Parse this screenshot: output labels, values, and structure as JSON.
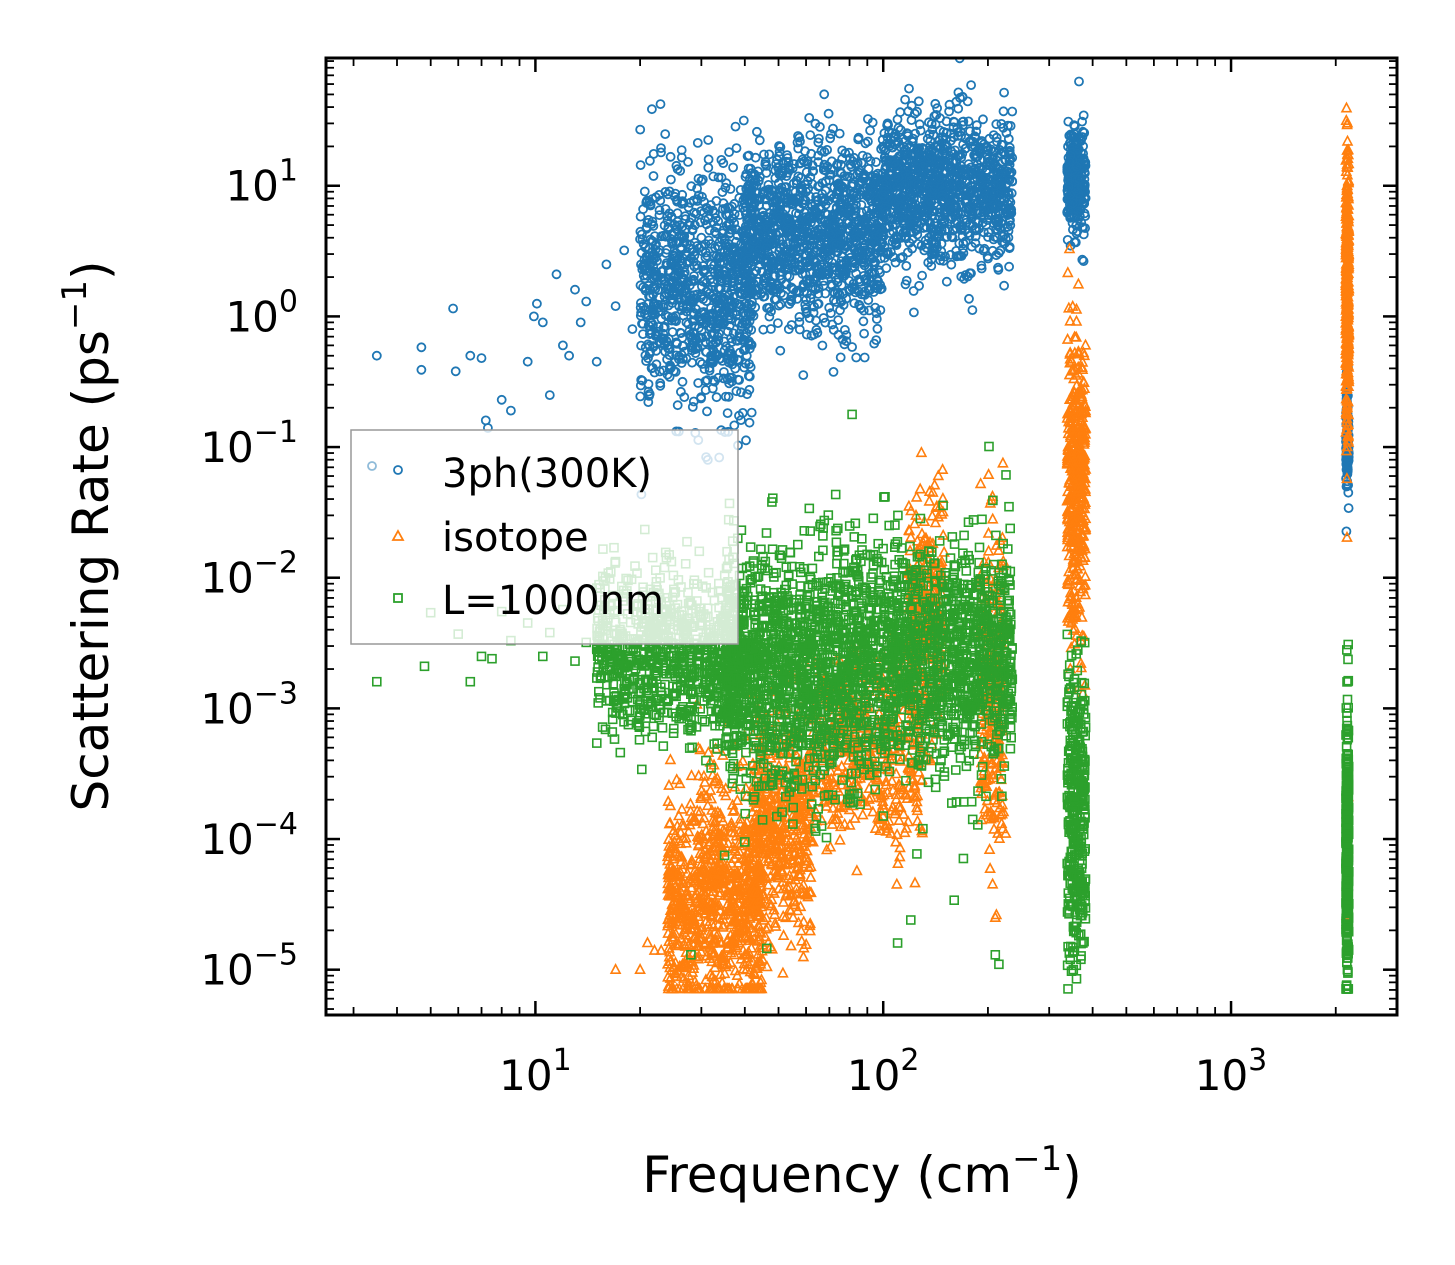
{
  "chart_data": {
    "type": "scatter",
    "title": "",
    "xlabel": "Frequency (cm",
    "xlabel_sup": "−1",
    "xlabel_close": ")",
    "ylabel": "Scattering Rate (ps",
    "ylabel_sup": "−1",
    "ylabel_close": ")",
    "xscale": "log",
    "yscale": "log",
    "xlim": [
      2.5,
      3000
    ],
    "ylim": [
      4.5e-06,
      95
    ],
    "x_ticks": [
      {
        "value": 10,
        "base": "10",
        "exp": "1"
      },
      {
        "value": 100,
        "base": "10",
        "exp": "2"
      },
      {
        "value": 1000,
        "base": "10",
        "exp": "3"
      }
    ],
    "y_ticks": [
      {
        "value": 1e-05,
        "base": "10",
        "exp": "−5"
      },
      {
        "value": 0.0001,
        "base": "10",
        "exp": "−4"
      },
      {
        "value": 0.001,
        "base": "10",
        "exp": "−3"
      },
      {
        "value": 0.01,
        "base": "10",
        "exp": "−2"
      },
      {
        "value": 0.1,
        "base": "10",
        "exp": "−1"
      },
      {
        "value": 1,
        "base": "10",
        "exp": "0"
      },
      {
        "value": 10,
        "base": "10",
        "exp": "1"
      }
    ],
    "legend_position": "center-left",
    "series": [
      {
        "name": "3ph(300K)",
        "marker": "circle",
        "color": "#1f77b4",
        "points": [
          [
            3.5,
            0.5
          ],
          [
            4.7,
            0.58
          ],
          [
            4.7,
            0.39
          ],
          [
            5.8,
            1.15
          ],
          [
            5.9,
            0.38
          ],
          [
            6.5,
            0.5
          ],
          [
            7.0,
            0.48
          ],
          [
            7.2,
            0.16
          ],
          [
            7.3,
            0.14
          ],
          [
            8.0,
            0.23
          ],
          [
            8.5,
            0.19
          ],
          [
            9.5,
            0.45
          ],
          [
            9.9,
            1.0
          ],
          [
            10.1,
            1.25
          ],
          [
            10.5,
            0.9
          ],
          [
            11.0,
            0.25
          ],
          [
            11.5,
            2.1
          ],
          [
            12.0,
            0.6
          ],
          [
            12.5,
            0.5
          ],
          [
            13.0,
            1.6
          ],
          [
            13.5,
            0.9
          ],
          [
            14.0,
            1.3
          ],
          [
            15.0,
            0.45
          ],
          [
            16.0,
            2.5
          ],
          [
            17.0,
            1.2
          ],
          [
            18.0,
            3.2
          ],
          [
            19.0,
            0.8
          ],
          [
            20.0,
            3.9
          ],
          [
            21.0,
            5.2
          ],
          [
            22.0,
            2.2
          ],
          [
            23.0,
            4.1
          ],
          [
            24.0,
            0.6
          ],
          [
            25.0,
            1.5
          ],
          [
            26.0,
            5.0
          ],
          [
            27.0,
            3.0
          ],
          [
            28.0,
            0.7
          ],
          [
            29.0,
            6.1
          ],
          [
            30.0,
            4.0
          ],
          [
            31.0,
            1.8
          ],
          [
            32.0,
            2.5
          ],
          [
            33.0,
            0.8
          ],
          [
            35.0,
            0.55
          ],
          [
            36.0,
            3.4
          ],
          [
            38.0,
            2.4
          ],
          [
            40.0,
            0.9
          ],
          [
            42.0,
            6.5
          ],
          [
            44.0,
            4.2
          ],
          [
            46.0,
            1.8
          ],
          [
            48.0,
            2.9
          ],
          [
            50.0,
            6.4
          ],
          [
            55.0,
            8.0
          ],
          [
            60.0,
            9.0
          ],
          [
            65.0,
            17.0
          ],
          [
            70.0,
            11.0
          ],
          [
            75.0,
            7.2
          ],
          [
            80.0,
            4.5
          ],
          [
            85.0,
            10.5
          ],
          [
            90.0,
            16.5
          ],
          [
            95.0,
            12.0
          ],
          [
            100.0,
            8.5
          ],
          [
            110.0,
            9.8
          ],
          [
            120.0,
            5.0
          ],
          [
            130.0,
            14.0
          ],
          [
            140.0,
            3.2
          ],
          [
            150.0,
            18.0
          ],
          [
            160.0,
            12.0
          ],
          [
            170.0,
            31.0
          ],
          [
            180.0,
            8.0
          ],
          [
            185.0,
            26.0
          ],
          [
            200.0,
            16.0
          ],
          [
            210.0,
            10.0
          ],
          [
            220.0,
            13.0
          ],
          [
            230.0,
            18.0
          ],
          [
            340.0,
            11.0
          ],
          [
            345.0,
            8.5
          ],
          [
            350.0,
            5.2
          ],
          [
            355.0,
            3.7
          ],
          [
            360.0,
            14.0
          ],
          [
            365.0,
            19.0
          ],
          [
            370.0,
            22.0
          ],
          [
            375.0,
            7.5
          ],
          [
            380.0,
            12.5
          ],
          [
            2150.0,
            0.19
          ],
          [
            2160.0,
            0.1
          ],
          [
            2165.0,
            0.065
          ],
          [
            2170.0,
            0.14
          ]
        ],
        "dense_bands": [
          {
            "x_min": 20,
            "x_max": 42,
            "y_center": 1.6,
            "spread": 0.45,
            "count": 900
          },
          {
            "x_min": 40,
            "x_max": 100,
            "y_center": 4.0,
            "spread": 0.35,
            "count": 1200
          },
          {
            "x_min": 100,
            "x_max": 235,
            "y_center": 9.5,
            "spread": 0.28,
            "count": 1100
          },
          {
            "x_min": 338,
            "x_max": 382,
            "y_center": 11.0,
            "spread": 0.2,
            "count": 260
          },
          {
            "x_min": 2140,
            "x_max": 2180,
            "y_center": 0.11,
            "spread": 0.22,
            "count": 120
          }
        ]
      },
      {
        "name": "isotope",
        "marker": "triangle",
        "color": "#ff7f0e",
        "points": [
          [
            17.0,
            1e-05
          ],
          [
            20.0,
            1e-05
          ],
          [
            21.0,
            1.6e-05
          ],
          [
            22.0,
            1.4e-05
          ],
          [
            23.0,
            1.4e-05
          ],
          [
            24.0,
            1.1e-05
          ],
          [
            26.0,
            3.2e-05
          ],
          [
            27.0,
            2.2e-05
          ],
          [
            55.0,
            3.8e-05
          ],
          [
            60.0,
            0.00012
          ],
          [
            75.0,
            0.00068
          ],
          [
            85.0,
            0.00058
          ],
          [
            90.0,
            0.00018
          ],
          [
            95.0,
            0.00012
          ],
          [
            140.0,
            0.0012
          ],
          [
            150.0,
            0.0014
          ],
          [
            200.0,
            0.00016
          ],
          [
            210.0,
            2.5e-05
          ],
          [
            215.0,
            0.0024
          ],
          [
            225.0,
            0.00011
          ],
          [
            340.0,
            0.0065
          ],
          [
            345.0,
            0.002
          ],
          [
            350.0,
            0.0048
          ],
          [
            355.0,
            0.0031
          ],
          [
            360.0,
            0.0036
          ],
          [
            370.0,
            0.0022
          ],
          [
            375.0,
            0.0013
          ],
          [
            380.0,
            0.0015
          ],
          [
            2150.0,
            2.6e-05
          ],
          [
            2160.0,
            4.6e-05
          ],
          [
            2170.0,
            0.00021
          ]
        ],
        "dense_bands": [
          {
            "x_min": 24,
            "x_max": 45,
            "y_center": 3.5e-05,
            "spread": 0.45,
            "count": 900
          },
          {
            "x_min": 42,
            "x_max": 62,
            "y_center": 0.00013,
            "spread": 0.45,
            "count": 500
          },
          {
            "x_min": 62,
            "x_max": 130,
            "y_center": 0.00048,
            "spread": 0.35,
            "count": 500
          },
          {
            "x_min": 118,
            "x_max": 150,
            "y_center": 0.005,
            "spread": 0.45,
            "count": 300
          },
          {
            "x_min": 190,
            "x_max": 222,
            "y_center": 0.0015,
            "spread": 0.65,
            "count": 260
          },
          {
            "x_min": 338,
            "x_max": 382,
            "y_center": 0.05,
            "spread": 0.55,
            "count": 420
          },
          {
            "x_min": 2140,
            "x_max": 2180,
            "y_center": 1.5,
            "spread": 0.55,
            "count": 380
          }
        ]
      },
      {
        "name": "L=1000nm",
        "marker": "square",
        "color": "#2ca02c",
        "points": [
          [
            3.5,
            0.0016
          ],
          [
            4.8,
            0.0021
          ],
          [
            5.0,
            0.0054
          ],
          [
            6.0,
            0.0037
          ],
          [
            6.5,
            0.0016
          ],
          [
            7.0,
            0.0025
          ],
          [
            7.5,
            0.0024
          ],
          [
            8.0,
            0.0055
          ],
          [
            8.5,
            0.0033
          ],
          [
            9.5,
            0.0045
          ],
          [
            10.5,
            0.0025
          ],
          [
            11.0,
            0.0038
          ],
          [
            12.0,
            0.0057
          ],
          [
            13.0,
            0.0023
          ],
          [
            14.0,
            0.0032
          ],
          [
            15.0,
            0.0029
          ],
          [
            18.0,
            0.0014
          ],
          [
            20.0,
            0.0011
          ],
          [
            22.0,
            0.0009
          ],
          [
            25.0,
            0.0007
          ],
          [
            28.0,
            1.3e-05
          ],
          [
            32.0,
            0.00035
          ],
          [
            35.0,
            7.5e-05
          ],
          [
            40.0,
            9.5e-05
          ],
          [
            45.0,
            0.00014
          ],
          [
            55.0,
            0.00013
          ],
          [
            65.0,
            0.00017
          ],
          [
            80.0,
            0.00022
          ],
          [
            100.0,
            0.00015
          ],
          [
            110.0,
            1.6e-05
          ],
          [
            120.0,
            2.4e-05
          ],
          [
            125.0,
            7.7e-05
          ],
          [
            130.0,
            0.00012
          ],
          [
            150.0,
            0.0085
          ],
          [
            160.0,
            3.4e-05
          ],
          [
            170.0,
            7.1e-05
          ],
          [
            175.0,
            0.0087
          ],
          [
            185.0,
            0.0075
          ],
          [
            190.0,
            0.0098
          ],
          [
            200.0,
            0.0078
          ],
          [
            210.0,
            1.3e-05
          ],
          [
            215.0,
            1.1e-05
          ],
          [
            222.0,
            0.0055
          ],
          [
            340.0,
            1.5e-05
          ],
          [
            345.0,
            1.2e-05
          ],
          [
            350.0,
            3.1e-05
          ],
          [
            355.0,
            5.3e-05
          ],
          [
            360.0,
            2.3e-05
          ],
          [
            370.0,
            1.2e-05
          ],
          [
            375.0,
            1.6e-05
          ],
          [
            2150.0,
            0.0007
          ],
          [
            2160.0,
            1e-05
          ],
          [
            2165.0,
            6e-05
          ],
          [
            2170.0,
            3e-05
          ]
        ],
        "dense_bands": [
          {
            "x_min": 15,
            "x_max": 38,
            "y_center": 0.0026,
            "spread": 0.3,
            "count": 800
          },
          {
            "x_min": 35,
            "x_max": 90,
            "y_center": 0.0021,
            "spread": 0.45,
            "count": 1400
          },
          {
            "x_min": 90,
            "x_max": 235,
            "y_center": 0.0025,
            "spread": 0.42,
            "count": 1200
          },
          {
            "x_min": 338,
            "x_max": 382,
            "y_center": 0.00017,
            "spread": 0.55,
            "count": 360
          },
          {
            "x_min": 2140,
            "x_max": 2180,
            "y_center": 9e-05,
            "spread": 0.55,
            "count": 320
          }
        ]
      }
    ]
  }
}
